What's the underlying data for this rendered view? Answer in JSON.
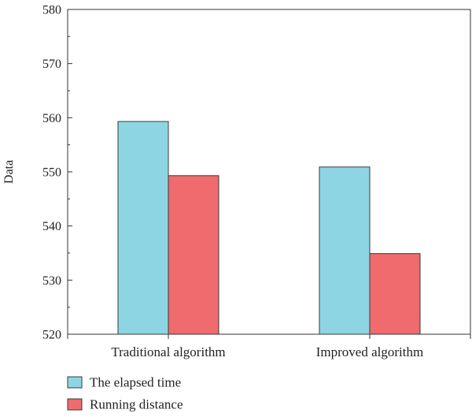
{
  "chart_data": {
    "type": "bar",
    "title": "",
    "xlabel": "",
    "ylabel": "Data",
    "ylim": [
      520,
      580
    ],
    "yticks": [
      520,
      530,
      540,
      550,
      560,
      570,
      580
    ],
    "categories": [
      "Traditional algorithm",
      "Improved algorithm"
    ],
    "series": [
      {
        "name": "The elapsed time",
        "values": [
          559.3,
          550.9
        ],
        "color": "#8ed5e3"
      },
      {
        "name": "Running distance",
        "values": [
          549.3,
          534.9
        ],
        "color": "#ef6b6e"
      }
    ],
    "grid": false,
    "legend_position": "bottom-left"
  }
}
